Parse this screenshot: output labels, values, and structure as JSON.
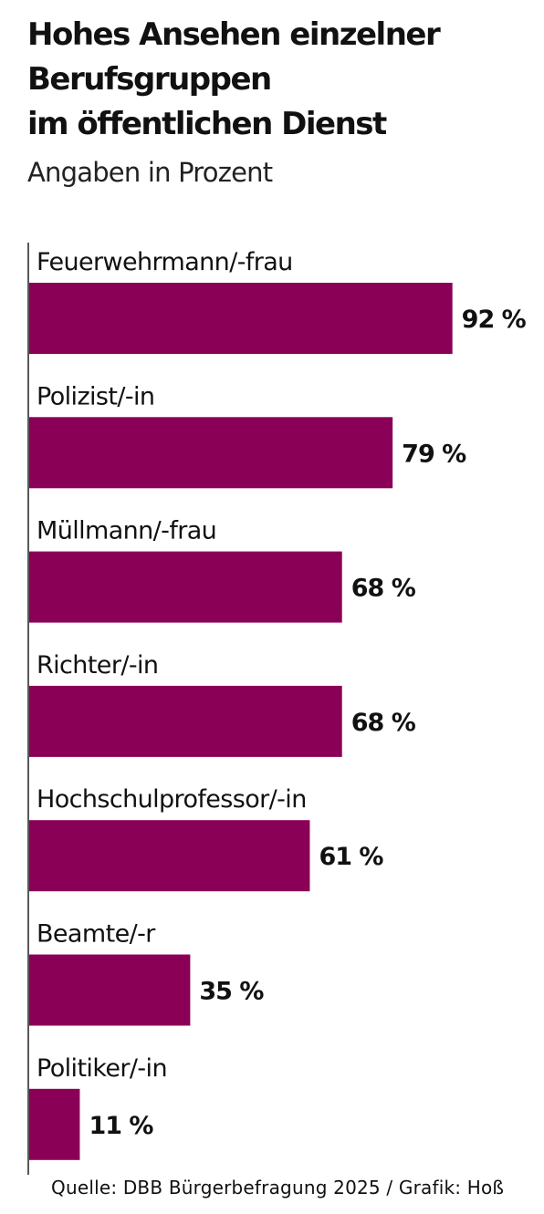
{
  "header": {
    "title_lines": [
      "Hohes Ansehen einzelner",
      "Berufsgruppen",
      "im öffentlichen Dienst"
    ],
    "subtitle": "Angaben in Prozent"
  },
  "chart_data": {
    "type": "bar",
    "orientation": "horizontal",
    "categories": [
      "Feuerwehrmann/-frau",
      "Polizist/-in",
      "Müllmann/-frau",
      "Richter/-in",
      "Hochschulprofessor/-in",
      "Beamte/-r",
      "Politiker/-in"
    ],
    "values": [
      92,
      79,
      68,
      68,
      61,
      35,
      11
    ],
    "value_labels": [
      "92 %",
      "79 %",
      "68 %",
      "68 %",
      "61 %",
      "35 %",
      "11 %"
    ],
    "title": "Hohes Ansehen einzelner Berufsgruppen im öffentlichen Dienst",
    "subtitle": "Angaben in Prozent",
    "xlim": [
      0,
      100
    ],
    "grid": false,
    "bar_color": "#8b0057"
  },
  "footer": {
    "source": "Quelle: DBB Bürgerbefragung 2025 / Grafik: Hoß"
  }
}
